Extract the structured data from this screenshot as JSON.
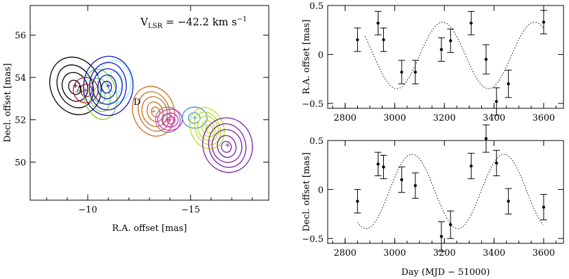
{
  "chart_data": [
    {
      "type": "contour",
      "annotation": "V_LSR = -42.2 km s^-1",
      "annotation_main": "V",
      "annotation_sub": "LSR",
      "annotation_mid": " = −42.2 km s",
      "annotation_sup": "−1",
      "xlabel": "R.A. offset [mas]",
      "ylabel": "Decl. offset [mas]",
      "xlim": [
        -7.2,
        -18.8
      ],
      "ylim": [
        48.2,
        57.4
      ],
      "xticks": [
        {
          "v": -10,
          "label": "−10"
        },
        {
          "v": -15,
          "label": "−15"
        }
      ],
      "yticks": [
        {
          "v": 50,
          "label": "50"
        },
        {
          "v": 52,
          "label": "52"
        },
        {
          "v": 54,
          "label": "54"
        },
        {
          "v": 56,
          "label": "56"
        }
      ],
      "point_labels": [
        {
          "text": "A",
          "x": -9.6,
          "y": 53.3
        },
        {
          "text": "D",
          "x": -12.4,
          "y": 52.7
        }
      ],
      "components": [
        {
          "color": "#000000",
          "x": -9.4,
          "y": 53.6,
          "rx": 1.2,
          "ry": 1.4,
          "levels": 4
        },
        {
          "color": "#b5171c",
          "x": -9.9,
          "y": 53.4,
          "rx": 0.6,
          "ry": 0.6,
          "levels": 2
        },
        {
          "color": "#7ed23a",
          "x": -10.6,
          "y": 53.2,
          "rx": 0.8,
          "ry": 1.2,
          "levels": 3
        },
        {
          "color": "#8cf0f5",
          "x": -11.3,
          "y": 53.8,
          "rx": 0.8,
          "ry": 1.0,
          "levels": 2
        },
        {
          "color": "#1212d2",
          "x": -11.0,
          "y": 53.6,
          "rx": 1.2,
          "ry": 1.4,
          "levels": 5
        },
        {
          "color": "#c7701e",
          "x": -13.2,
          "y": 52.4,
          "rx": 1.0,
          "ry": 1.2,
          "levels": 5
        },
        {
          "color": "#828282",
          "x": -13.9,
          "y": 52.0,
          "rx": 0.6,
          "ry": 0.6,
          "levels": 2
        },
        {
          "color": "#e01fe0",
          "x": -14.0,
          "y": 52.0,
          "rx": 0.6,
          "ry": 0.5,
          "levels": 3
        },
        {
          "color": "#3c8cf0",
          "x": -15.2,
          "y": 52.1,
          "rx": 0.6,
          "ry": 0.5,
          "levels": 2
        },
        {
          "color": "#b8e01e",
          "x": -15.8,
          "y": 51.6,
          "rx": 0.8,
          "ry": 1.0,
          "levels": 5
        },
        {
          "color": "#7a1ea8",
          "x": -16.8,
          "y": 50.8,
          "rx": 1.2,
          "ry": 1.3,
          "levels": 5
        }
      ]
    },
    {
      "type": "scatter",
      "ylabel": "R.A. offset [mas]",
      "xlim": [
        2730,
        3680
      ],
      "ylim": [
        -0.55,
        0.5
      ],
      "xticks": [
        {
          "v": 2800,
          "label": "2800"
        },
        {
          "v": 3000,
          "label": "3000"
        },
        {
          "v": 3200,
          "label": "3200"
        },
        {
          "v": 3400,
          "label": "3400"
        },
        {
          "v": 3600,
          "label": "3600"
        }
      ],
      "yticks": [
        {
          "v": 0.5,
          "label": "0.5"
        },
        {
          "v": 0,
          "label": "0"
        },
        {
          "v": -0.5,
          "label": "−0.5"
        }
      ],
      "points": [
        {
          "x": 2850,
          "y": 0.15,
          "err": 0.12
        },
        {
          "x": 2933,
          "y": 0.32,
          "err": 0.12
        },
        {
          "x": 2955,
          "y": 0.15,
          "err": 0.12
        },
        {
          "x": 3028,
          "y": -0.18,
          "err": 0.12
        },
        {
          "x": 3083,
          "y": -0.18,
          "err": 0.12
        },
        {
          "x": 3188,
          "y": 0.05,
          "err": 0.12
        },
        {
          "x": 3225,
          "y": 0.14,
          "err": 0.12
        },
        {
          "x": 3308,
          "y": 0.32,
          "err": 0.12
        },
        {
          "x": 3368,
          "y": -0.05,
          "err": 0.15
        },
        {
          "x": 3410,
          "y": -0.48,
          "err": 0.14
        },
        {
          "x": 3458,
          "y": -0.3,
          "err": 0.14
        },
        {
          "x": 3600,
          "y": 0.33,
          "err": 0.12
        }
      ],
      "fit": {
        "style": "dotted",
        "amplitude": 0.34,
        "period": 370,
        "phase_day": 3008,
        "offset": -0.01,
        "from": 2880,
        "to": 3600
      }
    },
    {
      "type": "scatter",
      "xlabel": "Day (MJD − 51000)",
      "ylabel": "Decl. offset [mas]",
      "xlim": [
        2730,
        3680
      ],
      "ylim": [
        -0.55,
        0.5
      ],
      "xticks": [
        {
          "v": 2800,
          "label": "2800"
        },
        {
          "v": 3000,
          "label": "3000"
        },
        {
          "v": 3200,
          "label": "3200"
        },
        {
          "v": 3400,
          "label": "3400"
        },
        {
          "v": 3600,
          "label": "3600"
        }
      ],
      "yticks": [
        {
          "v": 0.5,
          "label": "0.5"
        },
        {
          "v": 0,
          "label": "0"
        },
        {
          "v": -0.5,
          "label": "−0.5"
        }
      ],
      "points": [
        {
          "x": 2850,
          "y": -0.12,
          "err": 0.12
        },
        {
          "x": 2933,
          "y": 0.26,
          "err": 0.12
        },
        {
          "x": 2955,
          "y": 0.23,
          "err": 0.12
        },
        {
          "x": 3028,
          "y": 0.1,
          "err": 0.13
        },
        {
          "x": 3083,
          "y": 0.04,
          "err": 0.13
        },
        {
          "x": 3188,
          "y": -0.48,
          "err": 0.15
        },
        {
          "x": 3225,
          "y": -0.36,
          "err": 0.14
        },
        {
          "x": 3308,
          "y": 0.24,
          "err": 0.13
        },
        {
          "x": 3368,
          "y": 0.52,
          "err": 0.14
        },
        {
          "x": 3410,
          "y": 0.27,
          "err": 0.13
        },
        {
          "x": 3458,
          "y": -0.12,
          "err": 0.13
        },
        {
          "x": 3600,
          "y": -0.18,
          "err": 0.13
        }
      ],
      "fit": {
        "style": "dotted",
        "amplitude": 0.38,
        "period": 370,
        "phase_day": 3255,
        "offset": -0.02,
        "from": 2850,
        "to": 3600
      }
    }
  ]
}
